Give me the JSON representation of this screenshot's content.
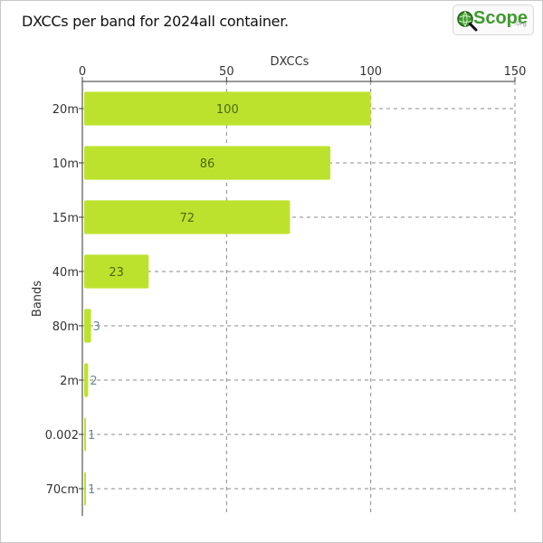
{
  "logo": {
    "name": "Scope",
    "suffix": ".org",
    "icon": "globe-magnifier-icon"
  },
  "chart_data": {
    "type": "bar",
    "orientation": "horizontal",
    "title": "DXCCs per band for 2024all container.",
    "xlabel": "DXCCs",
    "ylabel": "Bands",
    "xlim": [
      0,
      150
    ],
    "xticks": [
      0,
      50,
      100,
      150
    ],
    "x_axis_position": "top",
    "grid": true,
    "bar_color": "#bde22e",
    "categories": [
      "20m",
      "10m",
      "15m",
      "40m",
      "80m",
      "2m",
      "0.002",
      "70cm"
    ],
    "values": [
      100,
      86,
      72,
      23,
      3,
      2,
      1,
      1
    ]
  }
}
